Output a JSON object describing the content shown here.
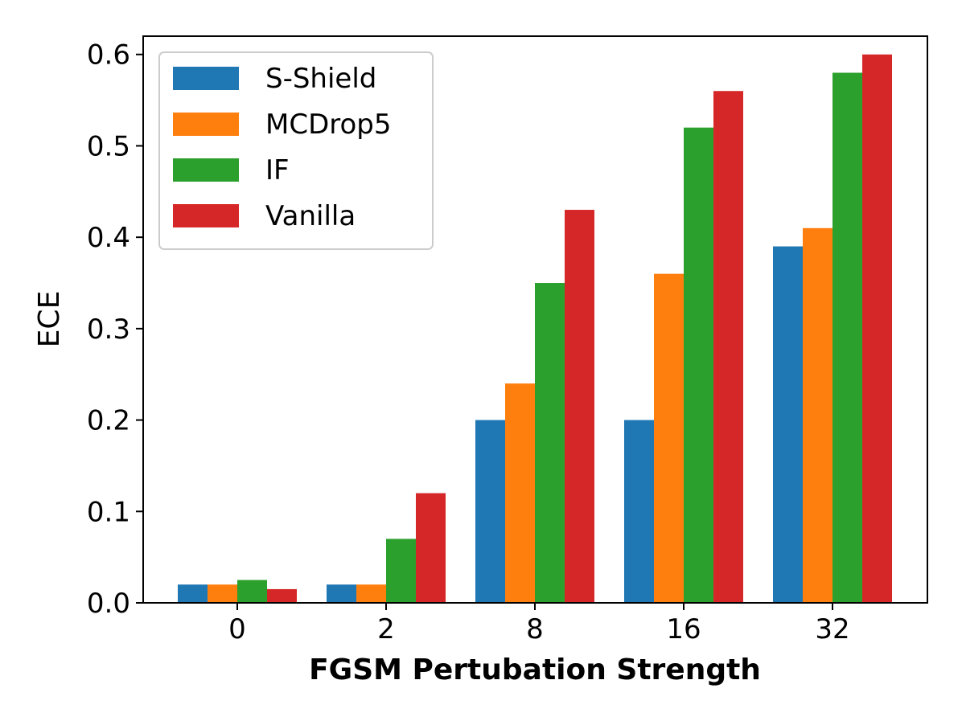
{
  "chart_data": {
    "type": "bar",
    "title": "",
    "xlabel": "FGSM Pertubation Strength",
    "ylabel": "ECE",
    "categories": [
      "0",
      "2",
      "8",
      "16",
      "32"
    ],
    "ylim": [
      0,
      0.62
    ],
    "yticks": [
      "0.0",
      "0.1",
      "0.2",
      "0.3",
      "0.4",
      "0.5",
      "0.6"
    ],
    "ytick_values": [
      0,
      0.1,
      0.2,
      0.3,
      0.4,
      0.5,
      0.6
    ],
    "legend_position": "top-left",
    "series": [
      {
        "name": "S-Shield",
        "color": "#1f77b4",
        "values": [
          0.02,
          0.02,
          0.2,
          0.2,
          0.39
        ]
      },
      {
        "name": "MCDrop5",
        "color": "#ff7f0e",
        "values": [
          0.02,
          0.02,
          0.24,
          0.36,
          0.41
        ]
      },
      {
        "name": "IF",
        "color": "#2ca02c",
        "values": [
          0.025,
          0.07,
          0.35,
          0.52,
          0.58
        ]
      },
      {
        "name": "Vanilla",
        "color": "#d62728",
        "values": [
          0.015,
          0.12,
          0.43,
          0.56,
          0.6
        ]
      }
    ]
  }
}
